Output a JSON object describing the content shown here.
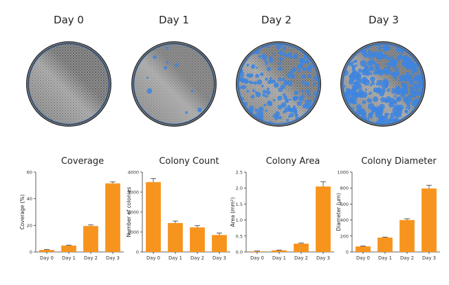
{
  "days": [
    {
      "label": "Day 0",
      "blue_density": 0.0,
      "dark": 0.55
    },
    {
      "label": "Day 1",
      "blue_density": 0.02,
      "dark": 0.3
    },
    {
      "label": "Day 2",
      "blue_density": 0.35,
      "dark": 0.45
    },
    {
      "label": "Day 3",
      "blue_density": 0.55,
      "dark": 0.4
    }
  ],
  "colors": {
    "bar": "#f7941d",
    "blue": "#3d85e0",
    "axis": "#333333"
  },
  "chart_data": [
    {
      "type": "bar",
      "title": "Coverage",
      "ylabel": "Coverage (%)",
      "xlabel": "",
      "categories": [
        "Day 0",
        "Day 1",
        "Day 2",
        "Day 3"
      ],
      "values": [
        1.5,
        4.8,
        19.5,
        51.5
      ],
      "errors": [
        0.3,
        0.3,
        0.8,
        1.2
      ],
      "ylim": [
        0,
        60
      ],
      "yticks": [
        0,
        20,
        40,
        60
      ],
      "ytick_labels": [
        "0",
        "20",
        "40",
        "60"
      ],
      "grid": false
    },
    {
      "type": "bar",
      "title": "Colony Count",
      "ylabel": "Number of colonies",
      "xlabel": "",
      "categories": [
        "Day 0",
        "Day 1",
        "Day 2",
        "Day 3"
      ],
      "values": [
        3500,
        1450,
        1230,
        850
      ],
      "errors": [
        180,
        100,
        90,
        100
      ],
      "ylim": [
        0,
        4000
      ],
      "yticks": [
        0,
        1000,
        2000,
        3000,
        4000
      ],
      "ytick_labels": [
        "0",
        "1000",
        "2000",
        "3000",
        "4000"
      ],
      "grid": false
    },
    {
      "type": "bar",
      "title": "Colony Area",
      "ylabel": "Area (mm²)",
      "xlabel": "",
      "categories": [
        "Day 0",
        "Day 1",
        "Day 2",
        "Day 3"
      ],
      "values": [
        0.02,
        0.05,
        0.26,
        2.05
      ],
      "errors": [
        0.01,
        0.01,
        0.02,
        0.15
      ],
      "ylim": [
        0,
        2.5
      ],
      "yticks": [
        0,
        0.5,
        1.0,
        1.5,
        2.0,
        2.5
      ],
      "ytick_labels": [
        "0.0",
        "0.5",
        "1.0",
        "1.5",
        "2.0",
        "2.5"
      ],
      "grid": false
    },
    {
      "type": "bar",
      "title": "Colony Diameter",
      "ylabel": "Diameter (µm)",
      "xlabel": "",
      "categories": [
        "Day 0",
        "Day 1",
        "Day 2",
        "Day 3"
      ],
      "values": [
        70,
        180,
        400,
        795
      ],
      "errors": [
        5,
        6,
        15,
        40
      ],
      "ylim": [
        0,
        1000
      ],
      "yticks": [
        0,
        200,
        400,
        600,
        800,
        1000
      ],
      "ytick_labels": [
        "0",
        "200",
        "400",
        "600",
        "800",
        "1000"
      ],
      "grid": false
    }
  ]
}
